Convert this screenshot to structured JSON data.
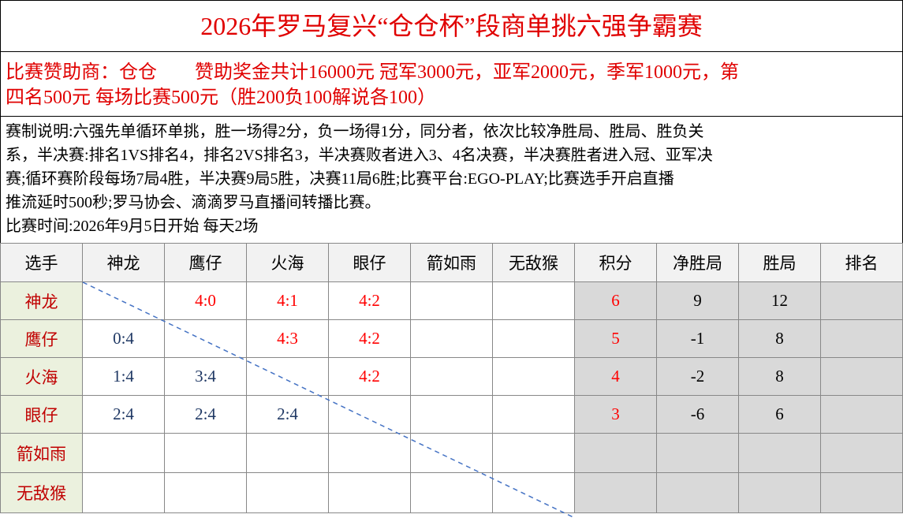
{
  "title": "2026年罗马复兴“仓仓杯”段商单挑六强争霸赛",
  "sponsor": {
    "lines": [
      "比赛赞助商：仓仓　　赞助奖金共计16000元 冠军3000元，亚军2000元，季军1000元，第",
      "四名500元 每场比赛500元（胜200负100解说各100）"
    ]
  },
  "rules": {
    "lines": [
      "赛制说明:六强先单循环单挑，胜一场得2分，负一场得1分，同分者，依次比较净胜局、胜局、胜负关",
      "系，半决赛:排名1VS排名4，排名2VS排名3，半决赛败者进入3、4名决赛，半决赛胜者进入冠、亚军决",
      "赛;循环赛阶段每场7局4胜，半决赛9局5胜，决赛11局6胜;比赛平台:EGO-PLAY;比赛选手开启直播",
      "推流延时500秒;罗马协会、滴滴罗马直播间转播比赛。"
    ]
  },
  "schedule": "比赛时间:2026年9月5日开始 每天2场",
  "table": {
    "header": [
      "选手",
      "神龙",
      "鹰仔",
      "火海",
      "眼仔",
      "箭如雨",
      "无敌猴",
      "积分",
      "净胜局",
      "胜局",
      "排名"
    ],
    "rows": [
      [
        "神龙",
        null,
        "4:0",
        "4:1",
        "4:2",
        null,
        null,
        6,
        9,
        12,
        null
      ],
      [
        "鹰仔",
        "0:4",
        null,
        "4:3",
        "4:2",
        null,
        null,
        5,
        -1,
        8,
        null
      ],
      [
        "火海",
        "1:4",
        "3:4",
        null,
        "4:2",
        null,
        null,
        4,
        -2,
        8,
        null
      ],
      [
        "眼仔",
        "2:4",
        "2:4",
        "2:4",
        null,
        null,
        null,
        3,
        -6,
        6,
        null
      ],
      [
        "箭如雨",
        null,
        null,
        null,
        null,
        null,
        null,
        null,
        null,
        null,
        null
      ],
      [
        "无敌猴",
        null,
        null,
        null,
        null,
        null,
        null,
        null,
        null,
        null,
        null
      ]
    ],
    "colors": {
      "win": "#ff0000",
      "loss": "#1f3864",
      "points": "#ff0000",
      "name": "#c00000"
    }
  }
}
